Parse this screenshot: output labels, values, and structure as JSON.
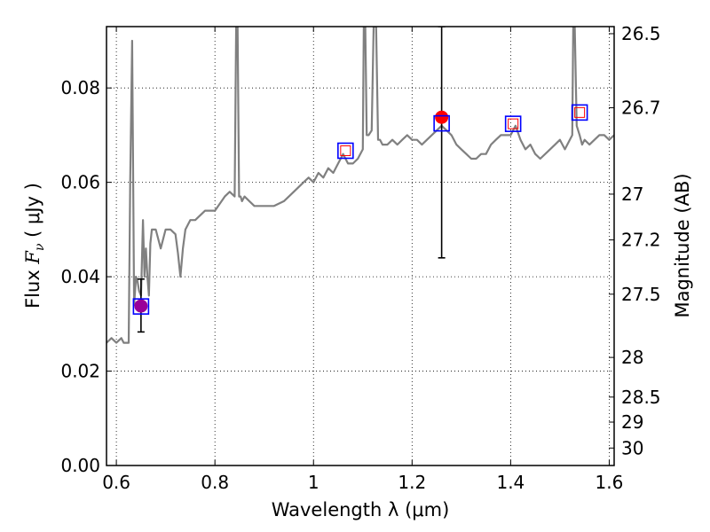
{
  "chart_data": {
    "type": "line",
    "xlabel": "Wavelength  λ (μm)",
    "ylabel": "Flux  F_ν  ( μJy )",
    "ylabel_parts": {
      "prefix": "Flux  ",
      "symbol": "F",
      "subscript": "ν",
      "suffix": "  ( μJy )"
    },
    "y2label": "Magnitude (AB)",
    "xlim": [
      0.58,
      1.61
    ],
    "ylim": [
      0.0,
      0.093
    ],
    "grid": true,
    "x_ticks": [
      0.6,
      0.8,
      1.0,
      1.2,
      1.4,
      1.6
    ],
    "x_tick_labels": [
      "0.6",
      "0.8",
      "1",
      "1.2",
      "1.4",
      "1.6"
    ],
    "y_ticks": [
      0.0,
      0.02,
      0.04,
      0.06,
      0.08
    ],
    "y_tick_labels": [
      "0.00",
      "0.02",
      "0.04",
      "0.06",
      "0.08"
    ],
    "y2_ticks": [
      {
        "flux": 0.0915,
        "label": "26.5"
      },
      {
        "flux": 0.0758,
        "label": "26.7"
      },
      {
        "flux": 0.0575,
        "label": "27"
      },
      {
        "flux": 0.0478,
        "label": "27.2"
      },
      {
        "flux": 0.0363,
        "label": "27.5"
      },
      {
        "flux": 0.0229,
        "label": "28"
      },
      {
        "flux": 0.0145,
        "label": "28.5"
      },
      {
        "flux": 0.0092,
        "label": "29"
      },
      {
        "flux": 0.0037,
        "label": "30"
      }
    ],
    "series": [
      {
        "kind": "model-spectrum",
        "color": "#808080",
        "x": [
          0.58,
          0.59,
          0.6,
          0.61,
          0.615,
          0.62,
          0.625,
          0.628,
          0.632,
          0.636,
          0.64,
          0.643,
          0.646,
          0.65,
          0.654,
          0.657,
          0.66,
          0.663,
          0.666,
          0.669,
          0.672,
          0.676,
          0.68,
          0.69,
          0.7,
          0.71,
          0.72,
          0.725,
          0.73,
          0.735,
          0.74,
          0.75,
          0.76,
          0.78,
          0.8,
          0.82,
          0.83,
          0.84,
          0.843,
          0.846,
          0.849,
          0.852,
          0.855,
          0.86,
          0.87,
          0.88,
          0.9,
          0.92,
          0.94,
          0.96,
          0.98,
          0.99,
          1.0,
          1.01,
          1.02,
          1.03,
          1.04,
          1.05,
          1.06,
          1.07,
          1.08,
          1.09,
          1.1,
          1.102,
          1.105,
          1.108,
          1.112,
          1.118,
          1.122,
          1.127,
          1.131,
          1.135,
          1.14,
          1.15,
          1.16,
          1.17,
          1.18,
          1.19,
          1.2,
          1.21,
          1.22,
          1.23,
          1.24,
          1.25,
          1.26,
          1.27,
          1.28,
          1.29,
          1.3,
          1.31,
          1.32,
          1.33,
          1.34,
          1.35,
          1.36,
          1.37,
          1.38,
          1.39,
          1.4,
          1.41,
          1.42,
          1.43,
          1.44,
          1.45,
          1.46,
          1.47,
          1.48,
          1.49,
          1.5,
          1.51,
          1.52,
          1.525,
          1.527,
          1.53,
          1.534,
          1.54,
          1.545,
          1.55,
          1.56,
          1.57,
          1.58,
          1.59,
          1.6,
          1.61
        ],
        "y": [
          0.026,
          0.027,
          0.026,
          0.027,
          0.026,
          0.026,
          0.026,
          0.06,
          0.09,
          0.034,
          0.04,
          0.039,
          0.037,
          0.036,
          0.052,
          0.04,
          0.046,
          0.04,
          0.036,
          0.047,
          0.05,
          0.05,
          0.05,
          0.046,
          0.05,
          0.05,
          0.049,
          0.045,
          0.04,
          0.046,
          0.05,
          0.052,
          0.052,
          0.054,
          0.054,
          0.057,
          0.058,
          0.057,
          0.093,
          0.093,
          0.057,
          0.057,
          0.056,
          0.057,
          0.056,
          0.055,
          0.055,
          0.055,
          0.056,
          0.058,
          0.06,
          0.061,
          0.06,
          0.062,
          0.061,
          0.063,
          0.062,
          0.064,
          0.066,
          0.064,
          0.064,
          0.065,
          0.067,
          0.093,
          0.093,
          0.07,
          0.07,
          0.071,
          0.093,
          0.093,
          0.069,
          0.069,
          0.068,
          0.068,
          0.069,
          0.068,
          0.069,
          0.07,
          0.069,
          0.069,
          0.068,
          0.069,
          0.07,
          0.071,
          0.072,
          0.071,
          0.07,
          0.068,
          0.067,
          0.066,
          0.065,
          0.065,
          0.066,
          0.066,
          0.068,
          0.069,
          0.07,
          0.07,
          0.07,
          0.072,
          0.069,
          0.067,
          0.068,
          0.066,
          0.065,
          0.066,
          0.067,
          0.068,
          0.069,
          0.067,
          0.069,
          0.07,
          0.093,
          0.093,
          0.072,
          0.07,
          0.068,
          0.069,
          0.068,
          0.069,
          0.07,
          0.07,
          0.069,
          0.07
        ]
      },
      {
        "kind": "model-flux",
        "marker": "open-square",
        "color": "#0000ff",
        "x": [
          0.65,
          1.065,
          1.26,
          1.405,
          1.54
        ],
        "y": [
          0.0337,
          0.0667,
          0.0725,
          0.0724,
          0.0748
        ]
      },
      {
        "kind": "model-flux-inner",
        "marker": "open-square",
        "color": "#ff0000",
        "x": [
          1.065,
          1.405,
          1.54
        ],
        "y": [
          0.0667,
          0.0724,
          0.0748
        ]
      },
      {
        "kind": "observed",
        "marker": "filled-circle",
        "points": [
          {
            "x": 0.65,
            "y": 0.0338,
            "yerr_low": 0.0283,
            "yerr_high": 0.0395,
            "color": "#990099"
          },
          {
            "x": 1.26,
            "y": 0.0738,
            "yerr_low": 0.044,
            "yerr_high": 0.093,
            "color": "#ff0000"
          }
        ]
      }
    ]
  }
}
